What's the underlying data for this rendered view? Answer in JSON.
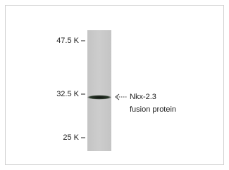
{
  "figure": {
    "markers": [
      "47.5 K",
      "32.5 K",
      "25 K"
    ],
    "annotation": [
      "Nkx-2.3",
      "fusion protein"
    ]
  }
}
